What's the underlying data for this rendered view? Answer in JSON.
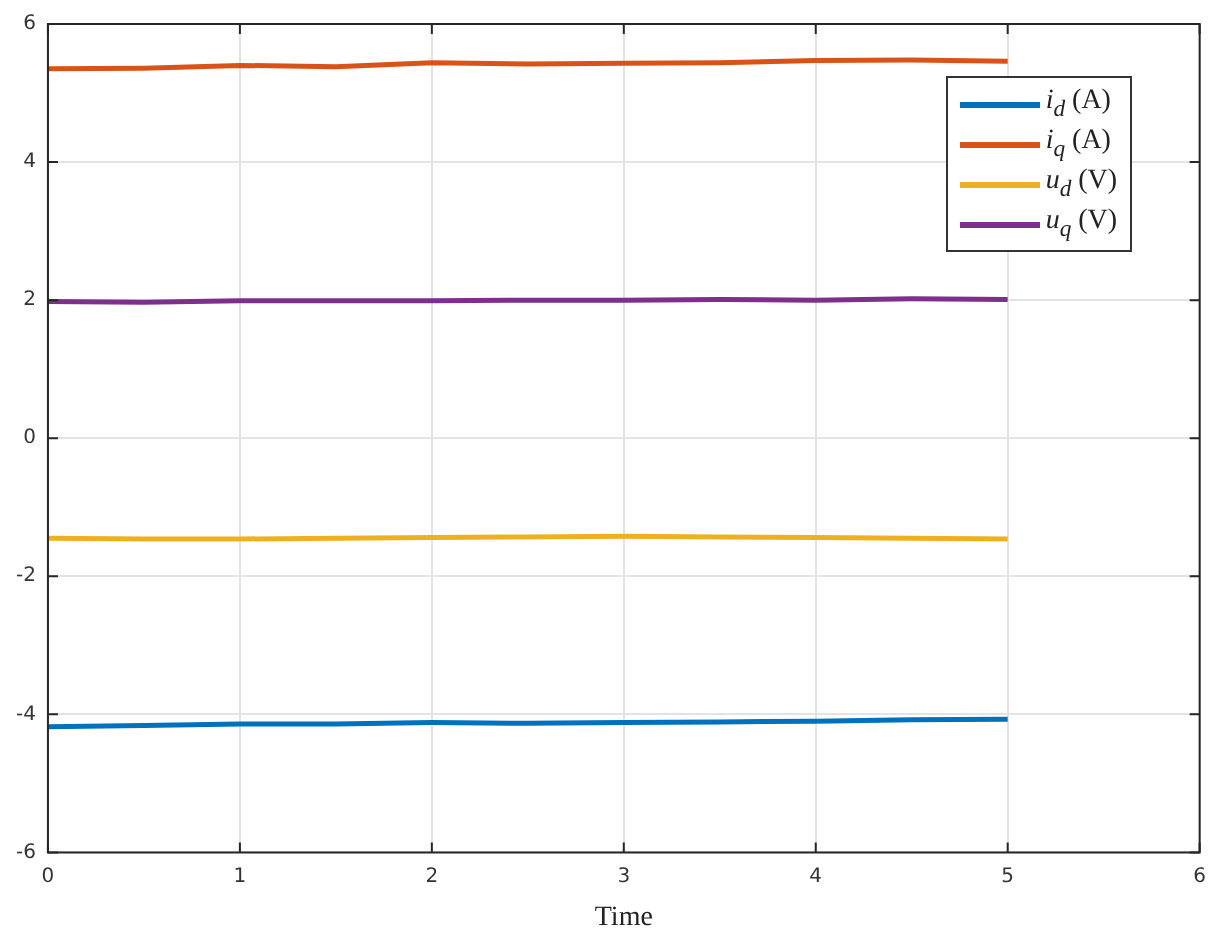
{
  "chart_data": {
    "type": "line",
    "xlabel": "Time",
    "x": [
      0,
      0.5,
      1,
      1.5,
      2,
      2.5,
      3,
      3.5,
      4,
      4.5,
      5
    ],
    "xlim": [
      0,
      6
    ],
    "xticks": [
      0,
      1,
      2,
      3,
      4,
      5,
      6
    ],
    "ylim": [
      -6,
      6
    ],
    "yticks": [
      -6,
      -4,
      -2,
      0,
      2,
      4,
      6
    ],
    "grid": true,
    "legend": "top right",
    "marker": "none",
    "line_style": "solid",
    "series": [
      {
        "name": "i$_{d}$ (A)",
        "color": "#0072bd",
        "values": [
          -4.18,
          -4.16,
          -4.14,
          -4.14,
          -4.12,
          -4.13,
          -4.12,
          -4.11,
          -4.1,
          -4.08,
          -4.07
        ]
      },
      {
        "name": "i$_{q}$ (A)",
        "color": "#d95319",
        "values": [
          5.35,
          5.36,
          5.4,
          5.38,
          5.44,
          5.42,
          5.43,
          5.44,
          5.47,
          5.48,
          5.46
        ]
      },
      {
        "name": "u$_{d}$ (V)",
        "color": "#edb120",
        "values": [
          -1.45,
          -1.46,
          -1.46,
          -1.45,
          -1.44,
          -1.43,
          -1.42,
          -1.43,
          -1.44,
          -1.45,
          -1.46
        ]
      },
      {
        "name": "u$_{q}$ (V)",
        "color": "#7e2f8e",
        "values": [
          1.98,
          1.97,
          1.99,
          1.99,
          1.99,
          2.0,
          2.0,
          2.01,
          2.0,
          2.02,
          2.01
        ]
      }
    ]
  }
}
